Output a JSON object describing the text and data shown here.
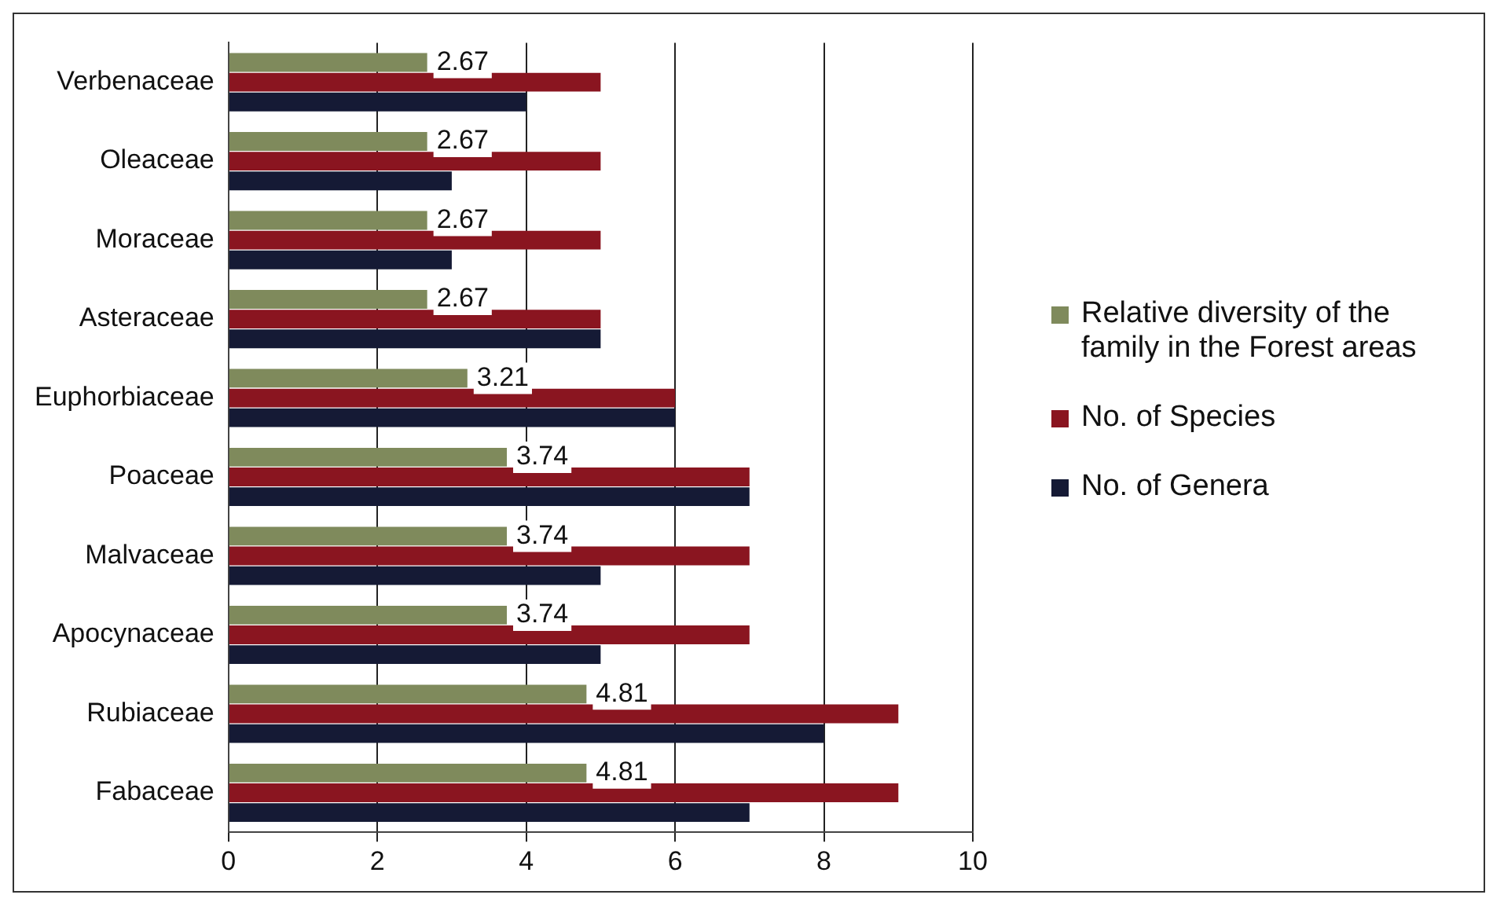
{
  "chart_data": {
    "type": "bar",
    "orientation": "horizontal",
    "categories": [
      "Verbenaceae",
      "Oleaceae",
      "Moraceae",
      "Asteraceae",
      "Euphorbiaceae",
      "Poaceae",
      "Malvaceae",
      "Apocynaceae",
      "Rubiaceae",
      "Fabaceae"
    ],
    "series": [
      {
        "name": "Relative diversity of the family in the Forest areas",
        "color": "#7f8a5c",
        "values": [
          2.67,
          2.67,
          2.67,
          2.67,
          3.21,
          3.74,
          3.74,
          3.74,
          4.81,
          4.81
        ],
        "value_labels": [
          "2.67",
          "2.67",
          "2.67",
          "2.67",
          "3.21",
          "3.74",
          "3.74",
          "3.74",
          "4.81",
          "4.81"
        ]
      },
      {
        "name": "No. of Species",
        "color": "#8a1520",
        "values": [
          5,
          5,
          5,
          5,
          6,
          7,
          7,
          7,
          9,
          9
        ]
      },
      {
        "name": "No. of Genera",
        "color": "#151a35",
        "values": [
          4,
          3,
          3,
          5,
          6,
          7,
          5,
          5,
          8,
          7
        ]
      }
    ],
    "xlim": [
      0,
      10
    ],
    "xticks": [
      0,
      2,
      4,
      6,
      8,
      10
    ],
    "grid": "x",
    "legend": "right"
  }
}
